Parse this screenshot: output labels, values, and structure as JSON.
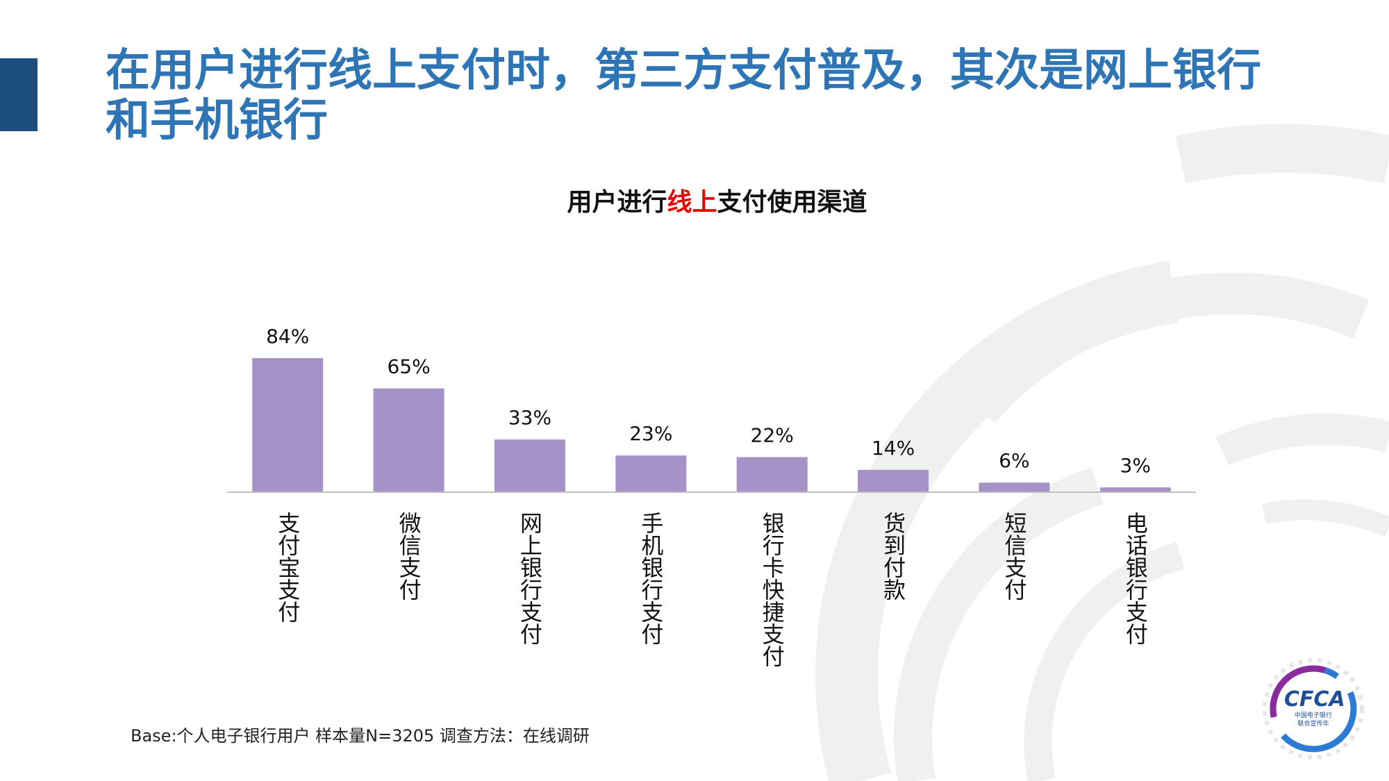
{
  "slide": {
    "title": "在用户进行线上支付时，第三方支付普及，其次是网上银行和手机银行",
    "footnote": "Base:个人电子银行用户  样本量N=3205   调查方法：在线调研"
  },
  "chart_title": {
    "part1": "用户进行",
    "highlight": "线上",
    "part2": "支付使用渠道",
    "highlight_color": "#e60000"
  },
  "logo": {
    "text": "CFCA",
    "sub_line1": "中国电子银行",
    "sub_line2": "联合宣传年"
  },
  "chart_data": {
    "type": "bar",
    "title": "用户进行线上支付使用渠道",
    "categories": [
      "支付宝支付",
      "微信支付",
      "网上银行支付",
      "手机银行支付",
      "银行卡快捷支付",
      "货到付款",
      "短信支付",
      "电话银行支付"
    ],
    "values": [
      84,
      65,
      33,
      23,
      22,
      14,
      6,
      3
    ],
    "value_labels": [
      "84%",
      "65%",
      "33%",
      "23%",
      "22%",
      "14%",
      "6%",
      "3%"
    ],
    "ylim": [
      0,
      100
    ],
    "bar_color": "#a593c7",
    "grid": false,
    "legend": "none"
  },
  "colors": {
    "title": "#2e75b6",
    "accent_bar": "#1d4e7e",
    "axis": "#bfbfbf"
  }
}
